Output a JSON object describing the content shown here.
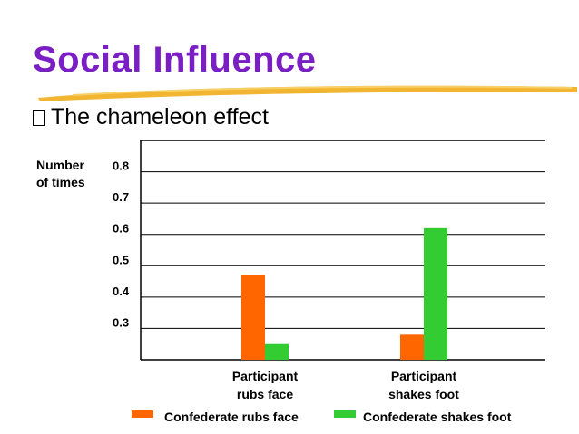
{
  "slide": {
    "title": "Social Influence",
    "bullet_icon": "square-bullet-icon",
    "bullet_text": "The chameleon effect"
  },
  "colors": {
    "title": "#7a1fc4",
    "underline": "#f2b531",
    "series_face": "#ff6600",
    "series_foot": "#33cc33"
  },
  "chart_data": {
    "type": "bar",
    "title": "",
    "ylabel_lines": [
      "Number",
      "of times"
    ],
    "xlabel": "",
    "ylim": [
      0.2,
      0.9
    ],
    "yticks": [
      0.3,
      0.4,
      0.5,
      0.6,
      0.7,
      0.8
    ],
    "ytick_labels": [
      "0.3",
      "0.4",
      "0.5",
      "0.6",
      "0.7",
      "0.8"
    ],
    "grid": true,
    "categories": [
      {
        "line1": "Participant",
        "line2": "rubs face"
      },
      {
        "line1": "Participant",
        "line2": "shakes foot"
      }
    ],
    "series": [
      {
        "name": "Confederate rubs face",
        "color": "#ff6600",
        "values": [
          0.47,
          0.28
        ]
      },
      {
        "name": "Confederate shakes foot",
        "color": "#33cc33",
        "values": [
          0.25,
          0.62
        ]
      }
    ],
    "legend_position": "bottom"
  }
}
